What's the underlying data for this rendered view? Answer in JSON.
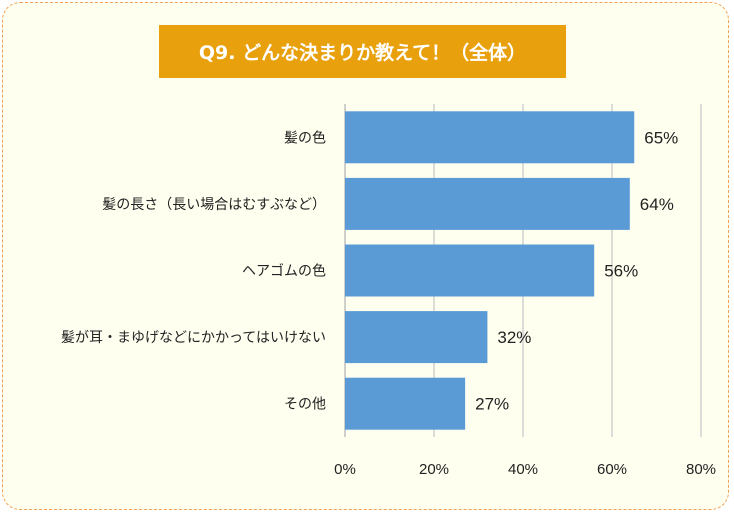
{
  "title": "Q9. どんな決まりか教えて！（全体）",
  "colors": {
    "bar": "#5b9bd5",
    "title_bg": "#e8a00c",
    "frame_bg": "#fffff0",
    "frame_border": "#f0a050",
    "grid": "#d0d0d0"
  },
  "chart_data": {
    "type": "bar",
    "orientation": "horizontal",
    "title": "Q9. どんな決まりか教えて！（全体）",
    "categories": [
      "髪の色",
      "髪の長さ（長い場合はむすぶなど）",
      "ヘアゴムの色",
      "髪が耳・まゆげなどにかかってはいけない",
      "その他"
    ],
    "values": [
      65,
      64,
      56,
      32,
      27
    ],
    "value_labels": [
      "65%",
      "64%",
      "56%",
      "32%",
      "27%"
    ],
    "xlim": [
      0,
      80
    ],
    "xticks": [
      0,
      20,
      40,
      60,
      80
    ],
    "xtick_labels": [
      "0%",
      "20%",
      "40%",
      "60%",
      "80%"
    ],
    "grid": true,
    "legend": "none"
  }
}
